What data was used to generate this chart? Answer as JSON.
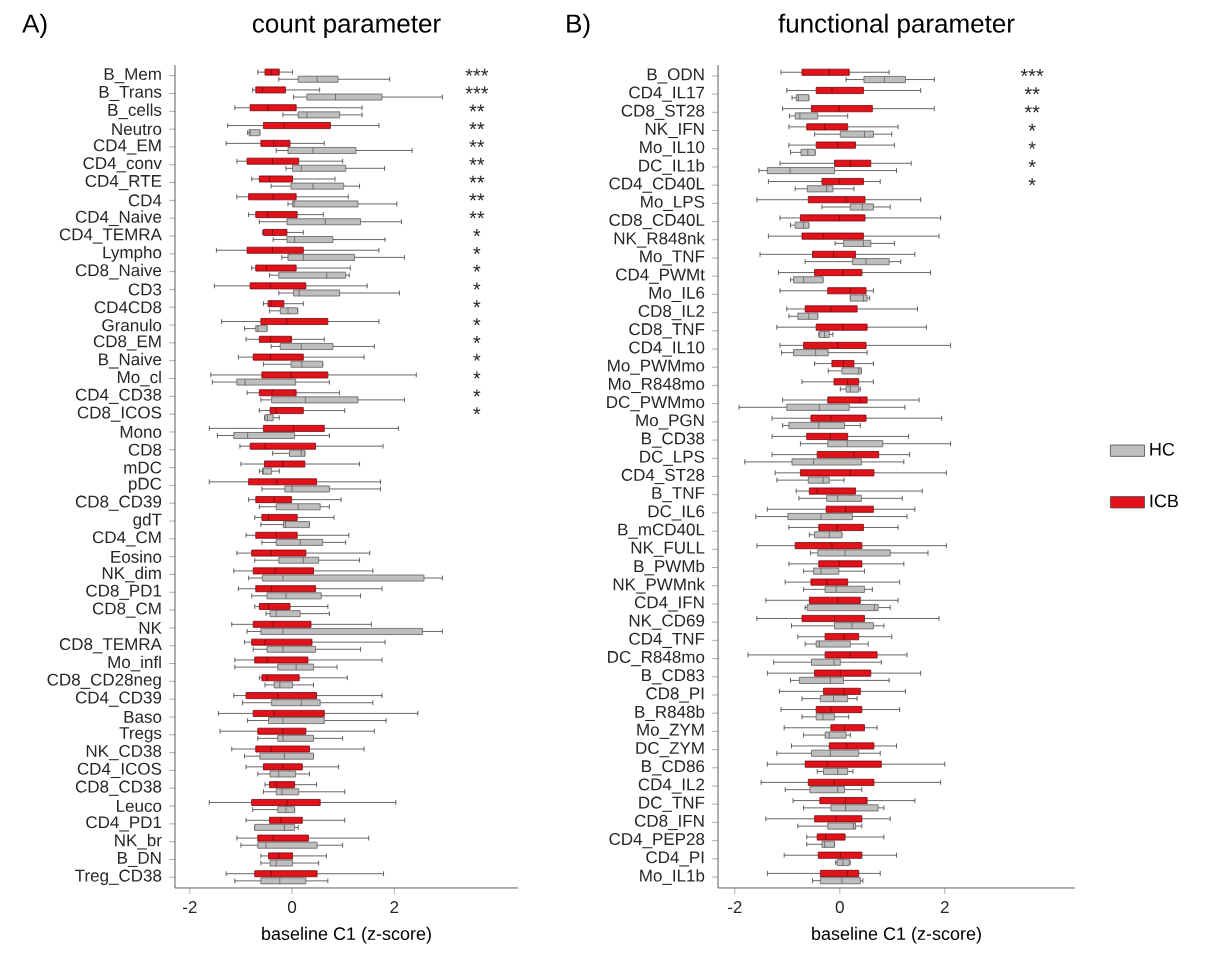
{
  "chart_data": [
    {
      "type": "box",
      "orientation": "horizontal",
      "title": "count parameter",
      "xlabel": "baseline C1 (z-score)",
      "xlim": [
        -2.29,
        4.42
      ],
      "xticks": [
        -2,
        0,
        2
      ],
      "categories": [
        "B_Mem",
        "B_Trans",
        "B_cells",
        "Neutro",
        "CD4_EM",
        "CD4_conv",
        "CD4_RTE",
        "CD4",
        "CD4_Naive",
        "CD4_TEMRA",
        "Lympho",
        "CD8_Naive",
        "CD3",
        "CD4CD8",
        "Granulo",
        "CD8_EM",
        "B_Naive",
        "Mo_cl",
        "CD4_CD38",
        "CD8_ICOS",
        "Mono",
        "CD8",
        "mDC",
        "pDC",
        "CD8_CD39",
        "gdT",
        "CD4_CM",
        "Eosino",
        "NK_dim",
        "CD8_PD1",
        "CD8_CM",
        "NK",
        "CD8_TEMRA",
        "Mo_infl",
        "CD8_CD28neg",
        "CD4_CD39",
        "Baso",
        "Tregs",
        "NK_CD38",
        "CD4_ICOS",
        "CD8_CD38",
        "Leuco",
        "CD4_PD1",
        "NK_br",
        "B_DN",
        "Treg_CD38"
      ],
      "annotations": [
        "A)",
        "***",
        "***",
        "**",
        "**",
        "**",
        "**",
        "**",
        "**",
        "**",
        "*",
        "*",
        "*",
        "*",
        "*",
        "*",
        "*",
        "*",
        "*",
        "*",
        "*"
      ],
      "series": [
        {
          "color": "#bebebe",
          "boxes": [
            {
              "low": -0.26,
              "q1": 0.12,
              "median": 0.49,
              "q3": 0.9,
              "high": 1.91
            },
            {
              "low": 0.03,
              "q1": 0.29,
              "median": 0.85,
              "q3": 1.76,
              "high": 2.94
            },
            {
              "low": -0.18,
              "q1": 0.12,
              "median": 0.29,
              "q3": 0.93,
              "high": 1.37
            },
            {
              "low": -0.87,
              "q1": -0.84,
              "median": -0.82,
              "q3": -0.63,
              "high": -0.63
            },
            {
              "low": -0.31,
              "q1": -0.08,
              "median": 0.41,
              "q3": 1.25,
              "high": 2.35
            },
            {
              "low": -0.12,
              "q1": 0.01,
              "median": 0.18,
              "q3": 1.05,
              "high": 1.81
            },
            {
              "low": -0.41,
              "q1": -0.02,
              "median": 0.41,
              "q3": 1.01,
              "high": 1.32
            },
            {
              "low": -0.08,
              "q1": 0.01,
              "median": 0.04,
              "q3": 1.29,
              "high": 2.05
            },
            {
              "low": -0.64,
              "q1": -0.1,
              "median": 0.65,
              "q3": 1.34,
              "high": 2.14
            },
            {
              "low": -0.37,
              "q1": -0.1,
              "median": 0.05,
              "q3": 0.8,
              "high": 1.82
            },
            {
              "low": -0.2,
              "q1": -0.08,
              "median": 0.22,
              "q3": 1.22,
              "high": 2.2
            },
            {
              "low": -0.44,
              "q1": -0.26,
              "median": 0.68,
              "q3": 1.05,
              "high": 1.12
            },
            {
              "low": -0.26,
              "q1": 0.03,
              "median": 0.14,
              "q3": 0.93,
              "high": 2.1
            },
            {
              "low": -0.44,
              "q1": -0.23,
              "median": -0.08,
              "q3": 0.11,
              "high": 0.11
            },
            {
              "low": -0.93,
              "q1": -0.71,
              "median": -0.67,
              "q3": -0.49,
              "high": -0.49
            },
            {
              "low": -0.41,
              "q1": -0.23,
              "median": 0.18,
              "q3": 0.8,
              "high": 1.61
            },
            {
              "low": -0.56,
              "q1": -0.02,
              "median": 0.19,
              "q3": 0.6,
              "high": 0.6
            },
            {
              "low": -1.56,
              "q1": -1.08,
              "median": -0.92,
              "q3": 0.07,
              "high": 0.73
            },
            {
              "low": -0.61,
              "q1": -0.4,
              "median": 0.26,
              "q3": 1.29,
              "high": 2.2
            },
            {
              "low": -0.54,
              "q1": -0.53,
              "median": -0.48,
              "q3": -0.37,
              "high": -0.25
            },
            {
              "low": -1.46,
              "q1": -1.14,
              "median": -0.87,
              "q3": 0.05,
              "high": 0.73
            },
            {
              "low": -0.38,
              "q1": -0.05,
              "median": 0.18,
              "q3": 0.25,
              "high": 0.25
            },
            {
              "low": -0.64,
              "q1": -0.58,
              "median": -0.56,
              "q3": -0.4,
              "high": -0.25
            },
            {
              "low": -0.59,
              "q1": -0.14,
              "median": 0.0,
              "q3": 0.73,
              "high": 1.73
            },
            {
              "low": -0.64,
              "q1": -0.31,
              "median": 0.12,
              "q3": 0.55,
              "high": 0.73
            },
            {
              "low": -0.61,
              "q1": -0.17,
              "median": -0.13,
              "q3": 0.34,
              "high": 0.34
            },
            {
              "low": -0.59,
              "q1": -0.31,
              "median": 0.16,
              "q3": 0.6,
              "high": 1.05
            },
            {
              "low": -0.73,
              "q1": -0.26,
              "median": 0.22,
              "q3": 0.52,
              "high": 1.32
            },
            {
              "low": -0.85,
              "q1": -0.58,
              "median": -0.18,
              "q3": 2.58,
              "high": 2.94
            },
            {
              "low": -0.79,
              "q1": -0.49,
              "median": -0.12,
              "q3": 0.57,
              "high": 1.34
            },
            {
              "low": -0.51,
              "q1": -0.43,
              "median": -0.31,
              "q3": 0.16,
              "high": 0.73
            },
            {
              "low": -0.88,
              "q1": -0.61,
              "median": -0.18,
              "q3": 2.55,
              "high": 2.94
            },
            {
              "low": -0.76,
              "q1": -0.49,
              "median": -0.18,
              "q3": 0.46,
              "high": 1.34
            },
            {
              "low": -1.12,
              "q1": -0.28,
              "median": 0.08,
              "q3": 0.42,
              "high": 0.88
            },
            {
              "low": -0.53,
              "q1": -0.35,
              "median": -0.24,
              "q3": 0.01,
              "high": 0.42
            },
            {
              "low": -0.97,
              "q1": -0.4,
              "median": 0.18,
              "q3": 0.55,
              "high": 1.58
            },
            {
              "low": -0.87,
              "q1": -0.46,
              "median": -0.18,
              "q3": 0.63,
              "high": 1.84
            },
            {
              "low": -0.67,
              "q1": -0.28,
              "median": -0.18,
              "q3": 0.42,
              "high": 0.99
            },
            {
              "low": -0.93,
              "q1": -0.63,
              "median": -0.15,
              "q3": 0.42,
              "high": 0.42
            },
            {
              "low": -0.67,
              "q1": -0.43,
              "median": -0.26,
              "q3": 0.07,
              "high": 0.34
            },
            {
              "low": -0.56,
              "q1": -0.31,
              "median": -0.2,
              "q3": 0.13,
              "high": 1.03
            },
            {
              "low": -0.77,
              "q1": -0.28,
              "median": -0.12,
              "q3": 0.05,
              "high": 0.05
            },
            {
              "low": -0.73,
              "q1": -0.73,
              "median": -0.15,
              "q3": 0.05,
              "high": 0.12
            },
            {
              "low": -1.0,
              "q1": -0.67,
              "median": -0.51,
              "q3": 0.49,
              "high": 0.99
            },
            {
              "low": -0.61,
              "q1": -0.43,
              "median": -0.31,
              "q3": 0.01,
              "high": 0.52
            },
            {
              "low": -1.12,
              "q1": -0.61,
              "median": -0.24,
              "q3": 0.27,
              "high": 0.7
            }
          ]
        },
        {
          "color": "#e3121a",
          "boxes": [
            {
              "low": -0.67,
              "q1": -0.53,
              "median": -0.41,
              "q3": -0.25,
              "high": 0.01
            },
            {
              "low": -0.77,
              "q1": -0.71,
              "median": -0.58,
              "q3": -0.13,
              "high": 0.54
            },
            {
              "low": -1.12,
              "q1": -0.82,
              "median": -0.47,
              "q3": 0.08,
              "high": 1.37
            },
            {
              "low": -1.26,
              "q1": -0.56,
              "median": -0.16,
              "q3": 0.75,
              "high": 1.7
            },
            {
              "low": -1.29,
              "q1": -0.61,
              "median": -0.36,
              "q3": -0.04,
              "high": 0.63
            },
            {
              "low": -1.08,
              "q1": -0.88,
              "median": -0.38,
              "q3": 0.13,
              "high": 0.99
            },
            {
              "low": -0.79,
              "q1": -0.64,
              "median": -0.44,
              "q3": 0.01,
              "high": 0.84
            },
            {
              "low": -1.08,
              "q1": -0.85,
              "median": -0.37,
              "q3": 0.08,
              "high": 1.1
            },
            {
              "low": -0.85,
              "q1": -0.71,
              "median": -0.48,
              "q3": 0.1,
              "high": 0.61
            },
            {
              "low": -0.58,
              "q1": -0.56,
              "median": -0.38,
              "q3": -0.1,
              "high": 0.22
            },
            {
              "low": -1.48,
              "q1": -0.88,
              "median": -0.38,
              "q3": 0.22,
              "high": 1.7
            },
            {
              "low": -0.79,
              "q1": -0.71,
              "median": -0.5,
              "q3": 0.08,
              "high": 1.14
            },
            {
              "low": -1.52,
              "q1": -0.82,
              "median": -0.42,
              "q3": 0.27,
              "high": 1.47
            },
            {
              "low": -0.56,
              "q1": -0.47,
              "median": -0.41,
              "q3": -0.16,
              "high": 0.22
            },
            {
              "low": -1.38,
              "q1": -0.61,
              "median": -0.1,
              "q3": 0.7,
              "high": 1.7
            },
            {
              "low": -0.9,
              "q1": -0.64,
              "median": -0.42,
              "q3": -0.01,
              "high": 0.63
            },
            {
              "low": -1.05,
              "q1": -0.76,
              "median": -0.42,
              "q3": 0.22,
              "high": 1.41
            },
            {
              "low": -1.59,
              "q1": -0.59,
              "median": -0.02,
              "q3": 0.7,
              "high": 2.43
            },
            {
              "low": -0.88,
              "q1": -0.64,
              "median": -0.39,
              "q3": 0.08,
              "high": 0.93
            },
            {
              "low": -0.64,
              "q1": -0.43,
              "median": -0.31,
              "q3": 0.22,
              "high": 1.03
            },
            {
              "low": -1.62,
              "q1": -0.56,
              "median": 0.03,
              "q3": 0.63,
              "high": 2.08
            },
            {
              "low": -1.02,
              "q1": -0.82,
              "median": -0.53,
              "q3": 0.46,
              "high": 1.78
            },
            {
              "low": -1.0,
              "q1": -0.54,
              "median": -0.18,
              "q3": 0.25,
              "high": 1.32
            },
            {
              "low": -1.62,
              "q1": -0.85,
              "median": -0.3,
              "q3": 0.48,
              "high": 1.73
            },
            {
              "low": -0.85,
              "q1": -0.71,
              "median": -0.35,
              "q3": -0.01,
              "high": 0.96
            },
            {
              "low": -0.73,
              "q1": -0.59,
              "median": -0.46,
              "q3": 0.1,
              "high": 0.82
            },
            {
              "low": -0.9,
              "q1": -0.71,
              "median": -0.31,
              "q3": 0.1,
              "high": 1.11
            },
            {
              "low": -1.08,
              "q1": -0.79,
              "median": -0.41,
              "q3": 0.27,
              "high": 1.52
            },
            {
              "low": -1.14,
              "q1": -0.76,
              "median": -0.33,
              "q3": 0.42,
              "high": 1.58
            },
            {
              "low": -1.05,
              "q1": -0.71,
              "median": -0.4,
              "q3": 0.46,
              "high": 1.76
            },
            {
              "low": -0.73,
              "q1": -0.64,
              "median": -0.46,
              "q3": -0.04,
              "high": 0.7
            },
            {
              "low": -1.18,
              "q1": -0.76,
              "median": -0.37,
              "q3": 0.37,
              "high": 1.55
            },
            {
              "low": -0.93,
              "q1": -0.79,
              "median": -0.53,
              "q3": 0.39,
              "high": 1.82
            },
            {
              "low": -1.12,
              "q1": -0.73,
              "median": -0.49,
              "q3": 0.31,
              "high": 1.76
            },
            {
              "low": -0.64,
              "q1": -0.59,
              "median": -0.49,
              "q3": 0.14,
              "high": 1.08
            },
            {
              "low": -1.14,
              "q1": -0.9,
              "median": -0.28,
              "q3": 0.48,
              "high": 1.76
            },
            {
              "low": -1.44,
              "q1": -0.76,
              "median": -0.35,
              "q3": 0.63,
              "high": 2.46
            },
            {
              "low": -1.41,
              "q1": -0.67,
              "median": -0.18,
              "q3": 0.27,
              "high": 1.61
            },
            {
              "low": -1.18,
              "q1": -0.71,
              "median": -0.41,
              "q3": 0.34,
              "high": 1.41
            },
            {
              "low": -0.9,
              "q1": -0.56,
              "median": -0.18,
              "q3": 0.2,
              "high": 0.91
            },
            {
              "low": -0.53,
              "q1": -0.44,
              "median": -0.31,
              "q3": 0.05,
              "high": 0.48
            },
            {
              "low": -1.62,
              "q1": -0.79,
              "median": -0.1,
              "q3": 0.55,
              "high": 2.03
            },
            {
              "low": -0.9,
              "q1": -0.44,
              "median": -0.22,
              "q3": 0.2,
              "high": 1.03
            },
            {
              "low": -1.08,
              "q1": -0.67,
              "median": -0.37,
              "q3": 0.32,
              "high": 1.5
            },
            {
              "low": -0.61,
              "q1": -0.46,
              "median": -0.26,
              "q3": 0.01,
              "high": 0.67
            },
            {
              "low": -1.29,
              "q1": -0.73,
              "median": -0.41,
              "q3": 0.49,
              "high": 1.79
            }
          ]
        }
      ]
    },
    {
      "type": "box",
      "orientation": "horizontal",
      "title": "functional parameter",
      "xlabel": "baseline C1 (z-score)",
      "xlim": [
        -2.32,
        4.48
      ],
      "xticks": [
        -2,
        0,
        2
      ],
      "legend": "right",
      "categories": [
        "B_ODN",
        "CD4_IL17",
        "CD8_ST28",
        "NK_IFN",
        "Mo_IL10",
        "DC_IL1b",
        "CD4_CD40L",
        "Mo_LPS",
        "CD8_CD40L",
        "NK_R848nk",
        "Mo_TNF",
        "CD4_PWMt",
        "Mo_IL6",
        "CD8_IL2",
        "CD8_TNF",
        "CD4_IL10",
        "Mo_PWMmo",
        "Mo_R848mo",
        "DC_PWMmo",
        "Mo_PGN",
        "B_CD38",
        "DC_LPS",
        "CD4_ST28",
        "B_TNF",
        "DC_IL6",
        "B_mCD40L",
        "NK_FULL",
        "B_PWMb",
        "NK_PWMnk",
        "CD4_IFN",
        "NK_CD69",
        "CD4_TNF",
        "DC_R848mo",
        "B_CD83",
        "CD8_PI",
        "B_R848b",
        "Mo_ZYM",
        "DC_ZYM",
        "B_CD86",
        "CD4_IL2",
        "DC_TNF",
        "CD8_IFN",
        "CD4_PEP28",
        "CD4_PI",
        "Mo_IL1b"
      ],
      "annotations": [
        "B)",
        "***",
        "**",
        "**",
        "*",
        "*",
        "*",
        "*"
      ],
      "series": [
        {
          "name": "HC",
          "color": "#bebebe",
          "boxes": [
            {
              "low": 0.12,
              "q1": 0.46,
              "median": 0.85,
              "q3": 1.25,
              "high": 1.8
            },
            {
              "low": -0.91,
              "q1": -0.83,
              "median": -0.79,
              "q3": -0.59,
              "high": -0.59
            },
            {
              "low": -0.96,
              "q1": -0.85,
              "median": -0.76,
              "q3": -0.42,
              "high": 0.15
            },
            {
              "low": -0.48,
              "q1": 0.01,
              "median": 0.47,
              "q3": 0.64,
              "high": 0.99
            },
            {
              "low": -0.94,
              "q1": -0.74,
              "median": -0.61,
              "q3": -0.47,
              "high": -0.47
            },
            {
              "low": -1.54,
              "q1": -1.38,
              "median": -0.95,
              "q3": -0.1,
              "high": 1.08
            },
            {
              "low": -0.85,
              "q1": -0.62,
              "median": -0.25,
              "q3": -0.13,
              "high": 0.27
            },
            {
              "low": -0.34,
              "q1": 0.2,
              "median": 0.43,
              "q3": 0.64,
              "high": 0.96
            },
            {
              "low": -0.94,
              "q1": -0.85,
              "median": -0.69,
              "q3": -0.59,
              "high": -0.59
            },
            {
              "low": -0.09,
              "q1": 0.07,
              "median": 0.45,
              "q3": 0.59,
              "high": 1.04
            },
            {
              "low": -0.66,
              "q1": 0.24,
              "median": 0.5,
              "q3": 0.94,
              "high": 1.16
            },
            {
              "low": -0.94,
              "q1": -0.88,
              "median": -0.69,
              "q3": -0.32,
              "high": -0.32
            },
            {
              "low": 0.2,
              "q1": 0.2,
              "median": 0.45,
              "q3": 0.52,
              "high": 0.57
            },
            {
              "low": -0.97,
              "q1": -0.8,
              "median": -0.59,
              "q3": -0.42,
              "high": -0.42
            },
            {
              "low": -0.4,
              "q1": -0.39,
              "median": -0.29,
              "q3": -0.2,
              "high": -0.13
            },
            {
              "low": -1.11,
              "q1": -0.88,
              "median": -0.46,
              "q3": -0.22,
              "high": 0.52
            },
            {
              "low": -0.22,
              "q1": 0.04,
              "median": 0.36,
              "q3": 0.41,
              "high": 0.41
            },
            {
              "low": 0.01,
              "q1": 0.12,
              "median": 0.2,
              "q3": 0.36,
              "high": 0.39
            },
            {
              "low": -1.92,
              "q1": -1.01,
              "median": -0.39,
              "q3": 0.18,
              "high": 1.24
            },
            {
              "low": -1.09,
              "q1": -0.97,
              "median": -0.4,
              "q3": 0.09,
              "high": 0.39
            },
            {
              "low": -0.75,
              "q1": -0.23,
              "median": 0.14,
              "q3": 0.82,
              "high": 2.11
            },
            {
              "low": -1.81,
              "q1": -0.91,
              "median": -0.5,
              "q3": 0.41,
              "high": 1.22
            },
            {
              "low": -1.2,
              "q1": -0.6,
              "median": -0.32,
              "q3": -0.2,
              "high": 0.08
            },
            {
              "low": -0.78,
              "q1": -0.25,
              "median": -0.04,
              "q3": 0.41,
              "high": 1.19
            },
            {
              "low": -1.6,
              "q1": -0.99,
              "median": -0.36,
              "q3": 0.24,
              "high": 1.28
            },
            {
              "low": -0.58,
              "q1": -0.48,
              "median": -0.2,
              "q3": 0.04,
              "high": 0.04
            },
            {
              "low": -0.56,
              "q1": -0.42,
              "median": 0.1,
              "q3": 0.96,
              "high": 1.68
            },
            {
              "low": -0.69,
              "q1": -0.5,
              "median": -0.36,
              "q3": -0.02,
              "high": 0.47
            },
            {
              "low": -0.69,
              "q1": -0.28,
              "median": -0.07,
              "q3": 0.47,
              "high": 0.62
            },
            {
              "low": -0.66,
              "q1": -0.62,
              "median": 0.66,
              "q3": 0.73,
              "high": 0.96
            },
            {
              "low": -0.92,
              "q1": -0.1,
              "median": 0.23,
              "q3": 0.64,
              "high": 0.84
            },
            {
              "low": -0.66,
              "q1": -0.45,
              "median": -0.39,
              "q3": 0.2,
              "high": 0.54
            },
            {
              "low": -1.26,
              "q1": -0.54,
              "median": -0.11,
              "q3": 0.01,
              "high": 0.79
            },
            {
              "low": -0.94,
              "q1": -0.77,
              "median": -0.18,
              "q3": 0.07,
              "high": 0.94
            },
            {
              "low": -0.72,
              "q1": -0.37,
              "median": -0.12,
              "q3": 0.15,
              "high": 0.33
            },
            {
              "low": -0.72,
              "q1": -0.45,
              "median": -0.32,
              "q3": -0.1,
              "high": 0.17
            },
            {
              "low": -0.69,
              "q1": -0.28,
              "median": -0.2,
              "q3": 0.12,
              "high": 0.2
            },
            {
              "low": -1.2,
              "q1": -0.54,
              "median": -0.18,
              "q3": 0.36,
              "high": 0.77
            },
            {
              "low": -0.43,
              "q1": -0.31,
              "median": -0.04,
              "q3": 0.15,
              "high": 0.25
            },
            {
              "low": -1.04,
              "q1": -0.57,
              "median": -0.04,
              "q3": 0.09,
              "high": 0.42
            },
            {
              "low": -0.69,
              "q1": -0.17,
              "median": 0.11,
              "q3": 0.73,
              "high": 0.84
            },
            {
              "low": -0.8,
              "q1": -0.23,
              "median": 0.26,
              "q3": 0.3,
              "high": 0.42
            },
            {
              "low": -0.63,
              "q1": -0.34,
              "median": -0.29,
              "q3": -0.1,
              "high": -0.1
            },
            {
              "low": -0.08,
              "q1": -0.05,
              "median": 0.06,
              "q3": 0.18,
              "high": 0.2
            },
            {
              "low": -0.52,
              "q1": -0.37,
              "median": 0.04,
              "q3": 0.39,
              "high": 0.44
            }
          ]
        },
        {
          "name": "ICB",
          "color": "#e3121a",
          "boxes": [
            {
              "low": -1.12,
              "q1": -0.72,
              "median": -0.2,
              "q3": 0.18,
              "high": 0.94
            },
            {
              "low": -1.01,
              "q1": -0.45,
              "median": -0.15,
              "q3": 0.45,
              "high": 1.54
            },
            {
              "low": -1.09,
              "q1": -0.54,
              "median": -0.01,
              "q3": 0.62,
              "high": 1.8
            },
            {
              "low": -0.97,
              "q1": -0.63,
              "median": -0.29,
              "q3": 0.15,
              "high": 1.11
            },
            {
              "low": -0.97,
              "q1": -0.45,
              "median": -0.04,
              "q3": 0.3,
              "high": 1.04
            },
            {
              "low": -1.14,
              "q1": -0.1,
              "median": 0.2,
              "q3": 0.59,
              "high": 1.36
            },
            {
              "low": -1.36,
              "q1": -0.34,
              "median": -0.01,
              "q3": 0.45,
              "high": 0.77
            },
            {
              "low": -1.58,
              "q1": -0.6,
              "median": 0.12,
              "q3": 0.48,
              "high": 1.54
            },
            {
              "low": -1.14,
              "q1": -0.75,
              "median": -0.01,
              "q3": 0.48,
              "high": 1.92
            },
            {
              "low": -1.36,
              "q1": -0.72,
              "median": -0.32,
              "q3": 0.45,
              "high": 1.89
            },
            {
              "low": -1.52,
              "q1": -0.52,
              "median": -0.12,
              "q3": 0.3,
              "high": 1.43
            },
            {
              "low": -1.17,
              "q1": -0.48,
              "median": 0.06,
              "q3": 0.42,
              "high": 1.73
            },
            {
              "low": -1.14,
              "q1": -0.23,
              "median": 0.2,
              "q3": 0.5,
              "high": 0.64
            },
            {
              "low": -1.01,
              "q1": -0.66,
              "median": -0.17,
              "q3": 0.33,
              "high": 1.48
            },
            {
              "low": -1.2,
              "q1": -0.45,
              "median": 0.06,
              "q3": 0.52,
              "high": 1.65
            },
            {
              "low": -1.14,
              "q1": -0.69,
              "median": -0.04,
              "q3": 0.5,
              "high": 2.11
            },
            {
              "low": -0.48,
              "q1": -0.15,
              "median": 0.07,
              "q3": 0.27,
              "high": 0.64
            },
            {
              "low": -0.72,
              "q1": -0.11,
              "median": 0.15,
              "q3": 0.36,
              "high": 0.64
            },
            {
              "low": -1.09,
              "q1": -0.23,
              "median": 0.38,
              "q3": 0.52,
              "high": 1.51
            },
            {
              "low": -1.29,
              "q1": -0.55,
              "median": -0.17,
              "q3": 0.5,
              "high": 1.94
            },
            {
              "low": -1.29,
              "q1": -0.63,
              "median": -0.18,
              "q3": 0.15,
              "high": 1.31
            },
            {
              "low": -1.29,
              "q1": -0.43,
              "median": 0.27,
              "q3": 0.74,
              "high": 1.33
            },
            {
              "low": -1.23,
              "q1": -0.75,
              "median": 0.2,
              "q3": 0.65,
              "high": 2.03
            },
            {
              "low": -0.83,
              "q1": -0.58,
              "median": -0.43,
              "q3": 0.3,
              "high": 1.57
            },
            {
              "low": -1.38,
              "q1": -0.26,
              "median": 0.11,
              "q3": 0.64,
              "high": 1.43
            },
            {
              "low": -0.97,
              "q1": -0.4,
              "median": -0.05,
              "q3": 0.45,
              "high": 1.11
            },
            {
              "low": -1.58,
              "q1": -0.85,
              "median": -0.15,
              "q3": 0.42,
              "high": 2.03
            },
            {
              "low": -0.97,
              "q1": -0.4,
              "median": -0.01,
              "q3": 0.42,
              "high": 1.22
            },
            {
              "low": -1.04,
              "q1": -0.55,
              "median": -0.25,
              "q3": 0.15,
              "high": 1.14
            },
            {
              "low": -1.41,
              "q1": -0.58,
              "median": -0.04,
              "q3": 0.39,
              "high": 1.11
            },
            {
              "low": -1.58,
              "q1": -0.72,
              "median": -0.1,
              "q3": 0.47,
              "high": 1.89
            },
            {
              "low": -0.8,
              "q1": -0.28,
              "median": 0.08,
              "q3": 0.36,
              "high": 0.99
            },
            {
              "low": -1.75,
              "q1": -0.28,
              "median": 0.2,
              "q3": 0.71,
              "high": 1.28
            },
            {
              "low": -1.38,
              "q1": -0.48,
              "median": 0.01,
              "q3": 0.59,
              "high": 1.54
            },
            {
              "low": -1.15,
              "q1": -0.31,
              "median": 0.08,
              "q3": 0.39,
              "high": 1.25
            },
            {
              "low": -1.12,
              "q1": -0.45,
              "median": -0.17,
              "q3": 0.42,
              "high": 1.14
            },
            {
              "low": -1.06,
              "q1": -0.17,
              "median": 0.09,
              "q3": 0.47,
              "high": 0.71
            },
            {
              "low": -0.92,
              "q1": -0.2,
              "median": 0.13,
              "q3": 0.65,
              "high": 1.08
            },
            {
              "low": -1.38,
              "q1": -0.66,
              "median": -0.24,
              "q3": 0.79,
              "high": 2.0
            },
            {
              "low": -1.5,
              "q1": -0.6,
              "median": -0.11,
              "q3": 0.65,
              "high": 1.92
            },
            {
              "low": -0.89,
              "q1": -0.38,
              "median": 0.11,
              "q3": 0.52,
              "high": 1.43
            },
            {
              "low": -1.41,
              "q1": -0.48,
              "median": -0.07,
              "q3": 0.42,
              "high": 0.96
            },
            {
              "low": -0.63,
              "q1": -0.43,
              "median": -0.27,
              "q3": 0.1,
              "high": 0.84
            },
            {
              "low": -1.06,
              "q1": -0.41,
              "median": 0.01,
              "q3": 0.42,
              "high": 1.08
            },
            {
              "low": -1.38,
              "q1": -0.37,
              "median": 0.14,
              "q3": 0.36,
              "high": 0.77
            }
          ]
        }
      ]
    }
  ]
}
